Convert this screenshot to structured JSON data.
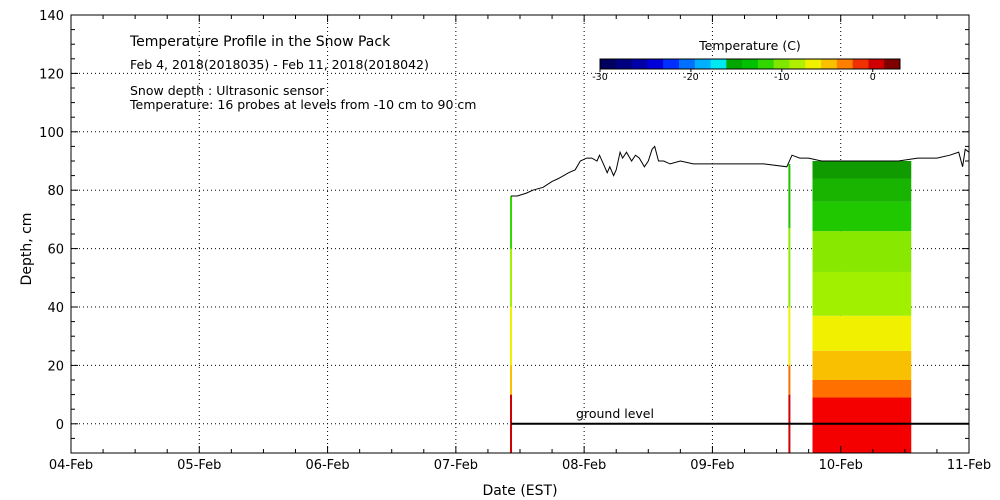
{
  "chart_data": {
    "type": "heatmap",
    "title": "Temperature Profile in the Snow Pack",
    "subtitle": "Feb  4, 2018(2018035) - Feb 11, 2018(2018042)",
    "notes": [
      "Snow depth : Ultrasonic sensor",
      "Temperature: 16 probes at levels from -10 cm to 90 cm"
    ],
    "xlabel": "Date (EST)",
    "ylabel": "Depth, cm",
    "x_ticks": [
      "04-Feb",
      "05-Feb",
      "06-Feb",
      "07-Feb",
      "08-Feb",
      "09-Feb",
      "10-Feb",
      "11-Feb"
    ],
    "xlim_days": [
      4,
      11
    ],
    "ylim": [
      -10,
      140
    ],
    "y_ticks": [
      0,
      20,
      40,
      60,
      80,
      100,
      120,
      140
    ],
    "grid": "dotted",
    "colorbar": {
      "title": "Temperature (C)",
      "ticks": [
        "-30",
        "-20",
        "-10",
        "0"
      ],
      "range": [
        -30,
        3
      ],
      "colors": [
        "#00005f",
        "#00007f",
        "#0000a8",
        "#0000d8",
        "#0030ff",
        "#0070ff",
        "#00b0ff",
        "#00e8f0",
        "#00a800",
        "#00c000",
        "#30d800",
        "#80e800",
        "#b0f000",
        "#f0f000",
        "#f8c000",
        "#ff8000",
        "#f03000",
        "#d00000",
        "#800000"
      ]
    },
    "ground_level": {
      "label": "ground level",
      "y": 0,
      "x_start": 7.43,
      "x_end": 11.0
    },
    "snow_depth": {
      "x": [
        7.43,
        7.48,
        7.55,
        7.6,
        7.68,
        7.75,
        7.8,
        7.88,
        7.93,
        7.97,
        8.02,
        8.06,
        8.1,
        8.12,
        8.15,
        8.18,
        8.2,
        8.23,
        8.25,
        8.28,
        8.3,
        8.33,
        8.37,
        8.4,
        8.43,
        8.47,
        8.5,
        8.53,
        8.55,
        8.58,
        8.62,
        8.67,
        8.75,
        8.85,
        9.0,
        9.2,
        9.4,
        9.58,
        9.62,
        9.68,
        9.75,
        9.85,
        10.0,
        10.2,
        10.45,
        10.6,
        10.75,
        10.85,
        10.92,
        10.95,
        10.97,
        11.0
      ],
      "y": [
        78,
        78,
        79,
        80,
        81,
        83,
        84,
        86,
        87,
        90,
        91,
        91,
        90,
        92,
        89,
        86,
        88,
        85,
        87,
        93,
        91,
        93,
        90,
        92,
        91,
        88,
        90,
        94,
        95,
        90,
        90,
        89,
        90,
        89,
        89,
        89,
        89,
        88,
        92,
        91,
        91,
        90,
        90,
        90,
        90,
        91,
        91,
        92,
        93,
        88,
        94,
        93
      ]
    },
    "profile_blocks": [
      {
        "x_start": 9.78,
        "x_end": 10.55,
        "bands": [
          {
            "y0": -10,
            "y1": 9,
            "temp": 0.0,
            "color": "#f40000"
          },
          {
            "y0": 9,
            "y1": 15,
            "temp": -1.5,
            "color": "#ff7000"
          },
          {
            "y0": 15,
            "y1": 25,
            "temp": -3.0,
            "color": "#f8c000"
          },
          {
            "y0": 25,
            "y1": 37,
            "temp": -4.5,
            "color": "#f0f000"
          },
          {
            "y0": 37,
            "y1": 52,
            "temp": -6.0,
            "color": "#a0f000"
          },
          {
            "y0": 52,
            "y1": 66,
            "temp": -7.0,
            "color": "#88e800"
          },
          {
            "y0": 66,
            "y1": 76,
            "temp": -8.5,
            "color": "#20c800"
          },
          {
            "y0": 76,
            "y1": 84,
            "temp": -9.5,
            "color": "#18b400"
          },
          {
            "y0": 84,
            "y1": 90,
            "temp": -10.5,
            "color": "#109c00"
          }
        ]
      }
    ],
    "profile_lines": [
      {
        "x": 7.43,
        "bands": [
          {
            "y0": -10,
            "y1": 10,
            "color": "#d00000"
          },
          {
            "y0": 10,
            "y1": 20,
            "color": "#f8c000"
          },
          {
            "y0": 20,
            "y1": 40,
            "color": "#f0f000"
          },
          {
            "y0": 40,
            "y1": 60,
            "color": "#a0f000"
          },
          {
            "y0": 60,
            "y1": 78,
            "color": "#30d800"
          }
        ]
      },
      {
        "x": 9.6,
        "bands": [
          {
            "y0": -10,
            "y1": 10,
            "color": "#d00000"
          },
          {
            "y0": 10,
            "y1": 20,
            "color": "#f87000"
          },
          {
            "y0": 20,
            "y1": 40,
            "color": "#f0f000"
          },
          {
            "y0": 40,
            "y1": 67,
            "color": "#90e800"
          },
          {
            "y0": 67,
            "y1": 89,
            "color": "#20c000"
          }
        ]
      }
    ]
  }
}
